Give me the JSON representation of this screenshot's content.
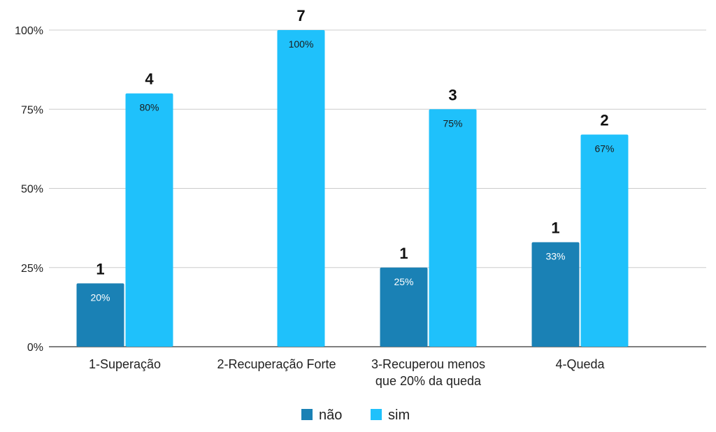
{
  "colors": {
    "nao": "#1a81b5",
    "sim": "#1fc1fb",
    "grid": "#cccccc",
    "axis": "#333333"
  },
  "chart_data": {
    "type": "bar",
    "categories": [
      [
        "1-Superação"
      ],
      [
        "2-Recuperação Forte"
      ],
      [
        "3-Recuperou menos",
        "que 20% da queda"
      ],
      [
        "4-Queda"
      ]
    ],
    "series": [
      {
        "name": "não",
        "values": [
          20,
          0,
          25,
          33
        ],
        "labels": [
          "20%",
          null,
          "25%",
          "33%"
        ],
        "counts": [
          "1",
          null,
          "1",
          "1"
        ]
      },
      {
        "name": "sim",
        "values": [
          80,
          100,
          75,
          67
        ],
        "labels": [
          "80%",
          "100%",
          "75%",
          "67%"
        ],
        "counts": [
          "4",
          "7",
          "3",
          "2"
        ]
      }
    ],
    "ylim": [
      0,
      100
    ],
    "yticks": [
      0,
      25,
      50,
      75,
      100
    ],
    "ytick_labels": [
      "0%",
      "25%",
      "50%",
      "75%",
      "100%"
    ],
    "grid": true,
    "legend_position": "bottom"
  }
}
